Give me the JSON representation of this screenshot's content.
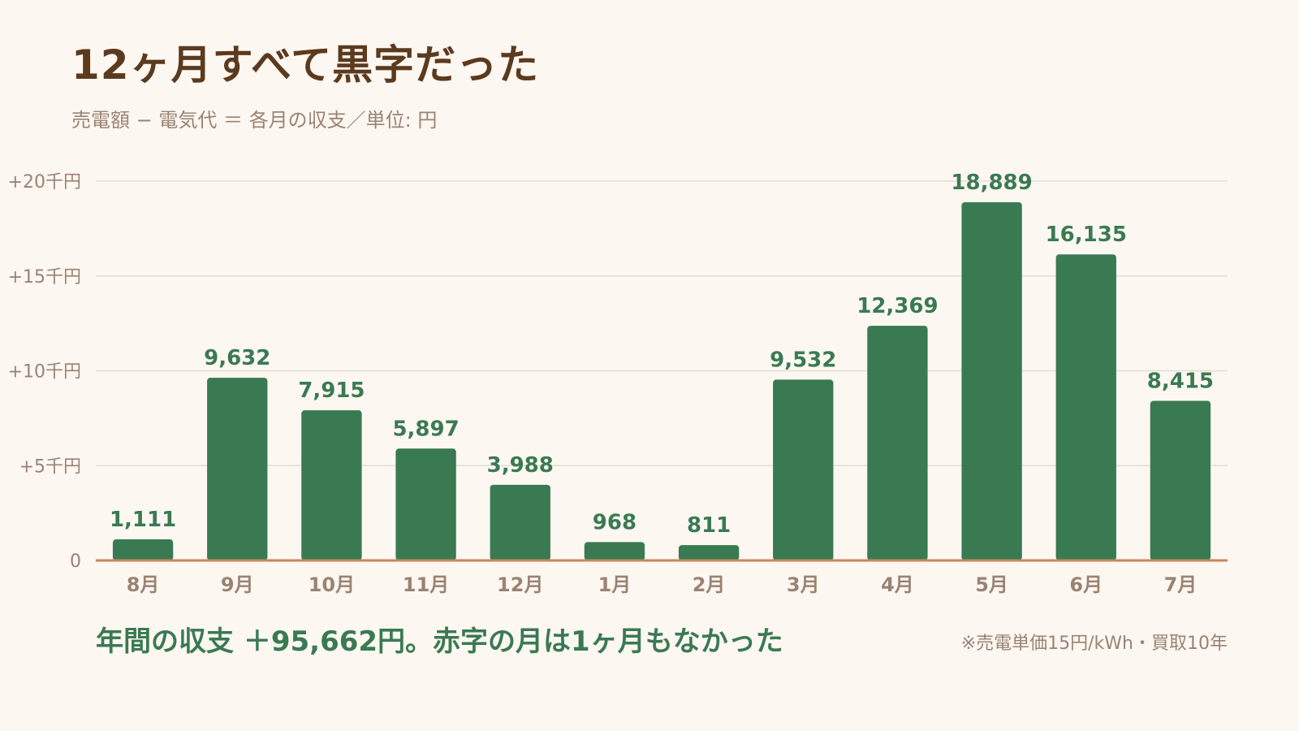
{
  "header": {
    "title": "12ヶ月すべて黒字だった",
    "subtitle": "売電額 − 電気代 ＝ 各月の収支／単位: 円"
  },
  "footer": {
    "summary": "年間の収支 ＋95,662円。赤字の月は1ヶ月もなかった",
    "note": "※売電単価15円/kWh・買取10年"
  },
  "colors": {
    "bar": "#3a7a52",
    "axis": "#c8875a",
    "grid": "#e4ddd6",
    "tick_label": "#9a8372",
    "value_label": "#3a7a52"
  },
  "chart_data": {
    "type": "bar",
    "title": "12ヶ月すべて黒字だった",
    "subtitle": "売電額 − 電気代 ＝ 各月の収支／単位: 円",
    "categories": [
      "8月",
      "9月",
      "10月",
      "11月",
      "12月",
      "1月",
      "2月",
      "3月",
      "4月",
      "5月",
      "6月",
      "7月"
    ],
    "values": [
      1111,
      9632,
      7915,
      5897,
      3988,
      968,
      811,
      9532,
      12369,
      18889,
      16135,
      8415
    ],
    "value_labels": [
      "1,111",
      "9,632",
      "7,915",
      "5,897",
      "3,988",
      "968",
      "811",
      "9,532",
      "12,369",
      "18,889",
      "16,135",
      "8,415"
    ],
    "y_ticks": [
      0,
      5000,
      10000,
      15000,
      20000
    ],
    "y_tick_labels": [
      "0",
      "+5千円",
      "+10千円",
      "+15千円",
      "+20千円"
    ],
    "ylim": [
      0,
      20000
    ],
    "grid": true,
    "legend": "none"
  }
}
